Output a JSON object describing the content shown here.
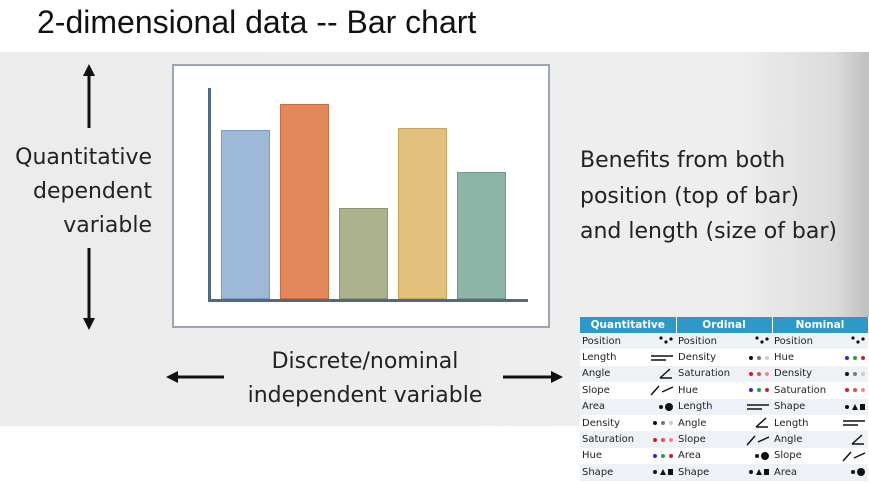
{
  "title": "2-dimensional data -- Bar chart",
  "left_label": [
    "Quantitative",
    "dependent",
    "variable"
  ],
  "bottom_label": [
    "Discrete/nominal",
    "independent variable"
  ],
  "right_text": [
    "Benefits from both",
    "position (top of bar)",
    "and length (size of bar)"
  ],
  "chart_colors": {
    "bar1": "#9eb8d8",
    "bar2": "#e3885a",
    "bar3": "#adb28e",
    "bar4": "#e3c07c",
    "bar5": "#8db4a6",
    "axis": "#4f6a85"
  },
  "table": {
    "header_color": "#2e98c8",
    "headers": [
      "Quantitative",
      "Ordinal",
      "Nominal"
    ],
    "rows": [
      [
        {
          "label": "Position",
          "icon": "position-icon"
        },
        {
          "label": "Position",
          "icon": "position-icon"
        },
        {
          "label": "Position",
          "icon": "position-icon"
        }
      ],
      [
        {
          "label": "Length",
          "icon": "length-icon"
        },
        {
          "label": "Density",
          "icon": "density-icon"
        },
        {
          "label": "Hue",
          "icon": "hue-icon"
        }
      ],
      [
        {
          "label": "Angle",
          "icon": "angle-icon"
        },
        {
          "label": "Saturation",
          "icon": "saturation-icon"
        },
        {
          "label": "Density",
          "icon": "density-icon"
        }
      ],
      [
        {
          "label": "Slope",
          "icon": "slope-icon"
        },
        {
          "label": "Hue",
          "icon": "hue-icon"
        },
        {
          "label": "Saturation",
          "icon": "saturation-icon"
        }
      ],
      [
        {
          "label": "Area",
          "icon": "area-icon"
        },
        {
          "label": "Length",
          "icon": "length-icon"
        },
        {
          "label": "Shape",
          "icon": "shape-icon"
        }
      ],
      [
        {
          "label": "Density",
          "icon": "density-icon"
        },
        {
          "label": "Angle",
          "icon": "angle-icon"
        },
        {
          "label": "Length",
          "icon": "length-icon"
        }
      ],
      [
        {
          "label": "Saturation",
          "icon": "saturation-icon"
        },
        {
          "label": "Slope",
          "icon": "slope-icon"
        },
        {
          "label": "Angle",
          "icon": "angle-icon"
        }
      ],
      [
        {
          "label": "Hue",
          "icon": "hue-icon"
        },
        {
          "label": "Area",
          "icon": "area-icon"
        },
        {
          "label": "Slope",
          "icon": "slope-icon"
        }
      ],
      [
        {
          "label": "Shape",
          "icon": "shape-icon"
        },
        {
          "label": "Shape",
          "icon": "shape-icon"
        },
        {
          "label": "Area",
          "icon": "area-icon"
        }
      ]
    ]
  }
}
